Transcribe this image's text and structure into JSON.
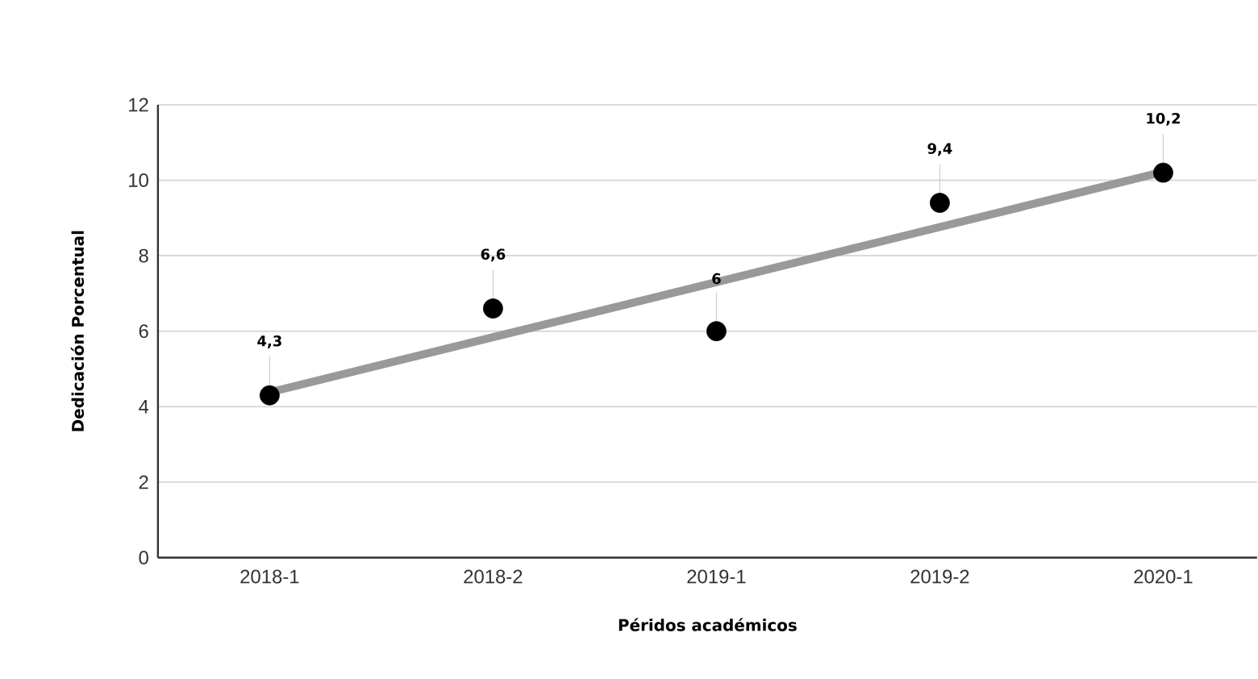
{
  "chart_data": {
    "type": "scatter",
    "xlabel": "Péridos académicos",
    "ylabel": "Dedicación Porcentual",
    "categories": [
      "2018-1",
      "2018-2",
      "2019-1",
      "2019-2",
      "2020-1"
    ],
    "series": [
      {
        "color": "#000000",
        "values": [
          4.3,
          6.6,
          6,
          9.4,
          10.2
        ],
        "value_labels": [
          "4,3",
          "6,6",
          "6",
          "9,4",
          "10,2"
        ]
      },
      {
        "type": "line",
        "color": "#999999",
        "marker": "none",
        "values": [
          4.38,
          5.84,
          7.3,
          8.76,
          10.22
        ]
      }
    ],
    "ylim": [
      0,
      12
    ],
    "yticks": [
      0,
      2,
      4,
      6,
      8,
      10,
      12
    ],
    "grid": "y",
    "marker": "circle"
  }
}
